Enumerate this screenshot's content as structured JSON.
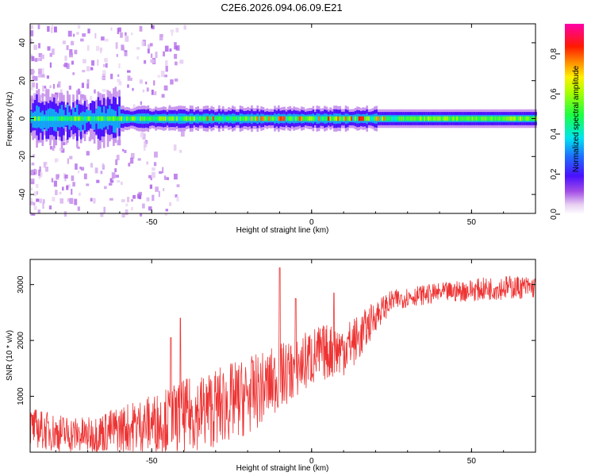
{
  "figure": {
    "title": "C2E6.2026.094.06.09.E21"
  },
  "chart_data": [
    {
      "type": "heatmap",
      "title": "C2E6.2026.094.06.09.E21",
      "xlabel": "Height of straight line (km)",
      "ylabel": "Frequency (Hz)",
      "xlim": [
        -88,
        70
      ],
      "ylim": [
        -50,
        50
      ],
      "xticks": [
        -50,
        0,
        50
      ],
      "yticks": [
        -40,
        -20,
        0,
        20,
        40
      ],
      "description": "Spectrogram: energy concentrated in a narrow band around 0 Hz across all heights; wider scatter (up to about ±50 Hz) at heights below about -60 km.",
      "band_center_hz": 0,
      "colorbar": {
        "label": "Normalized spectral amplitude",
        "range": [
          0.0,
          0.95
        ],
        "ticks": [
          0.0,
          0.2,
          0.4,
          0.6,
          0.8
        ],
        "colormap": "rainbow (white, purple, blue, cyan, green, yellow, red, magenta)"
      }
    },
    {
      "type": "line",
      "xlabel": "Height of straight line (km)",
      "ylabel": "SNR (10 * v/v)",
      "xlim": [
        -88,
        70
      ],
      "ylim": [
        0,
        3450
      ],
      "xticks": [
        -50,
        0,
        50
      ],
      "yticks": [
        1000,
        2000,
        3000
      ],
      "color": "#ee3333",
      "series": [
        {
          "x": [
            -88,
            -80,
            -70,
            -60,
            -50,
            -40,
            -30,
            -20,
            -15,
            -10,
            -5,
            0,
            5,
            10,
            15,
            20,
            25,
            30,
            40,
            50,
            60,
            70
          ],
          "y_mean": [
            450,
            350,
            300,
            420,
            520,
            650,
            800,
            1000,
            1150,
            1350,
            1500,
            1700,
            1800,
            1850,
            2050,
            2450,
            2700,
            2780,
            2850,
            2900,
            2950,
            2950
          ],
          "y_spread": [
            350,
            350,
            320,
            420,
            520,
            650,
            720,
            700,
            650,
            600,
            550,
            550,
            500,
            480,
            420,
            280,
            200,
            180,
            180,
            200,
            220,
            200
          ]
        }
      ],
      "peaks": [
        {
          "x": -10,
          "y": 3300
        },
        {
          "x": -5,
          "y": 2750
        },
        {
          "x": 7,
          "y": 2850
        },
        {
          "x": -41,
          "y": 2400
        },
        {
          "x": -44,
          "y": 2050
        }
      ]
    }
  ]
}
